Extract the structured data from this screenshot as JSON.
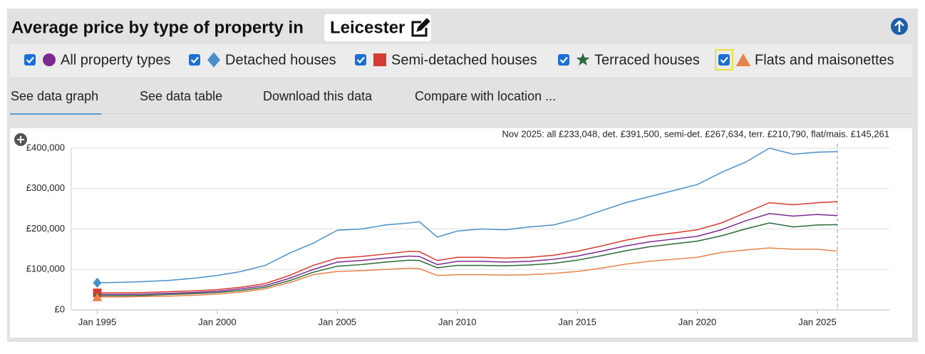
{
  "header": {
    "title": "Average price by type of property in",
    "location": "Leicester"
  },
  "tabs": [
    "See data graph",
    "See data table",
    "Download this data",
    "Compare with location ..."
  ],
  "chart_data": {
    "type": "line",
    "annotation": "Nov 2025: all £233,048, det. £391,500, semi-det. £267,634, terr. £210,790, flat/mais. £145,261",
    "x": [
      "1995-01",
      "1996-01",
      "1997-01",
      "1998-01",
      "1999-01",
      "2000-01",
      "2001-01",
      "2002-01",
      "2003-01",
      "2004-01",
      "2005-01",
      "2006-01",
      "2007-01",
      "2008-01",
      "2008-06",
      "2009-03",
      "2010-01",
      "2011-01",
      "2012-01",
      "2013-01",
      "2014-01",
      "2015-01",
      "2016-01",
      "2017-01",
      "2018-01",
      "2019-01",
      "2020-01",
      "2021-01",
      "2022-01",
      "2023-01",
      "2024-01",
      "2025-01",
      "2025-11"
    ],
    "xlim": [
      "1993-12",
      "2028-01"
    ],
    "xticks": [
      {
        "value": "1995-01",
        "label": "Jan 1995"
      },
      {
        "value": "2000-01",
        "label": "Jan 2000"
      },
      {
        "value": "2005-01",
        "label": "Jan 2005"
      },
      {
        "value": "2010-01",
        "label": "Jan 2010"
      },
      {
        "value": "2015-01",
        "label": "Jan 2015"
      },
      {
        "value": "2020-01",
        "label": "Jan 2020"
      },
      {
        "value": "2025-01",
        "label": "Jan 2025"
      }
    ],
    "ylim": [
      0,
      400000
    ],
    "yticks": [
      {
        "value": 0,
        "label": "£0"
      },
      {
        "value": 100000,
        "label": "£100,000"
      },
      {
        "value": 200000,
        "label": "£200,000"
      },
      {
        "value": 300000,
        "label": "£300,000"
      },
      {
        "value": 400000,
        "label": "£400,000"
      }
    ],
    "grid": true,
    "series": [
      {
        "name": "All property types",
        "color": "#7d2a8f",
        "marker": "circle",
        "values": [
          38000,
          38000,
          39000,
          41000,
          43000,
          46000,
          52000,
          60000,
          78000,
          100000,
          118000,
          122000,
          128000,
          133000,
          132000,
          112000,
          120000,
          120000,
          118000,
          120000,
          125000,
          133000,
          145000,
          158000,
          168000,
          175000,
          182000,
          198000,
          220000,
          238000,
          232000,
          236000,
          233048
        ]
      },
      {
        "name": "Detached houses",
        "color": "#4a90c8",
        "marker": "diamond",
        "values": [
          67000,
          68000,
          70000,
          73000,
          78000,
          85000,
          95000,
          110000,
          140000,
          165000,
          197000,
          200000,
          210000,
          215000,
          218000,
          180000,
          195000,
          200000,
          198000,
          205000,
          210000,
          225000,
          245000,
          265000,
          280000,
          295000,
          310000,
          340000,
          365000,
          400000,
          385000,
          390000,
          391500
        ]
      },
      {
        "name": "Semi-detached houses",
        "color": "#d63b33",
        "marker": "square",
        "values": [
          42000,
          42000,
          43000,
          45000,
          47000,
          50000,
          56000,
          65000,
          85000,
          110000,
          128000,
          132000,
          138000,
          145000,
          144000,
          122000,
          130000,
          130000,
          128000,
          130000,
          135000,
          145000,
          158000,
          172000,
          183000,
          190000,
          198000,
          215000,
          240000,
          265000,
          260000,
          265000,
          267634
        ]
      },
      {
        "name": "Terraced houses",
        "color": "#2d6a3b",
        "marker": "star",
        "values": [
          35000,
          35000,
          36000,
          38000,
          40000,
          43000,
          48000,
          56000,
          72000,
          93000,
          108000,
          112000,
          118000,
          123000,
          122000,
          104000,
          110000,
          110000,
          109000,
          111000,
          115000,
          123000,
          134000,
          146000,
          156000,
          163000,
          170000,
          183000,
          200000,
          215000,
          205000,
          210000,
          210790
        ]
      },
      {
        "name": "Flats and maisonettes",
        "color": "#e8834a",
        "marker": "triangle",
        "values": [
          32000,
          32000,
          33000,
          34000,
          36000,
          39000,
          44000,
          52000,
          67000,
          87000,
          95000,
          97000,
          100000,
          103000,
          102000,
          85000,
          87000,
          87000,
          86000,
          87000,
          90000,
          95000,
          103000,
          113000,
          120000,
          125000,
          130000,
          142000,
          148000,
          153000,
          150000,
          150000,
          145261
        ]
      }
    ]
  }
}
